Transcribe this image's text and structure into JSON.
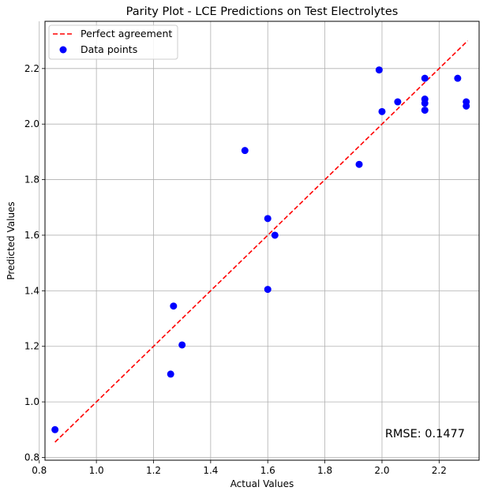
{
  "chart_data": {
    "type": "scatter",
    "title": "Parity Plot - LCE Predictions on Test Electrolytes",
    "xlabel": "Actual Values",
    "ylabel": "Predicted Values",
    "xlim": [
      0.82,
      2.34
    ],
    "ylim": [
      0.79,
      2.37
    ],
    "xticks": [
      0.8,
      1.0,
      1.2,
      1.4,
      1.6,
      1.8,
      2.0,
      2.2
    ],
    "yticks": [
      0.8,
      1.0,
      1.2,
      1.4,
      1.6,
      1.8,
      2.0,
      2.2
    ],
    "xtick_labels": [
      "0.8",
      "1.0",
      "1.2",
      "1.4",
      "1.6",
      "1.8",
      "2.0",
      "2.2"
    ],
    "ytick_labels": [
      "0.8",
      "1.0",
      "1.2",
      "1.4",
      "1.6",
      "1.8",
      "2.0",
      "2.2"
    ],
    "grid": true,
    "legend_position": "top-left",
    "series": [
      {
        "name": "Perfect agreement",
        "type": "line",
        "style": "dashed",
        "color": "#ff0000",
        "points": [
          [
            0.855,
            0.855
          ],
          [
            2.3,
            2.3
          ]
        ]
      },
      {
        "name": "Data points",
        "type": "scatter",
        "color": "#0000ff",
        "points": [
          [
            0.855,
            0.9
          ],
          [
            1.26,
            1.1
          ],
          [
            1.27,
            1.345
          ],
          [
            1.3,
            1.205
          ],
          [
            1.52,
            1.905
          ],
          [
            1.6,
            1.66
          ],
          [
            1.6,
            1.405
          ],
          [
            1.625,
            1.6
          ],
          [
            1.92,
            1.855
          ],
          [
            1.99,
            2.195
          ],
          [
            2.0,
            2.045
          ],
          [
            2.055,
            2.08
          ],
          [
            2.15,
            2.165
          ],
          [
            2.15,
            2.09
          ],
          [
            2.15,
            2.075
          ],
          [
            2.15,
            2.05
          ],
          [
            2.265,
            2.165
          ],
          [
            2.295,
            2.08
          ],
          [
            2.295,
            2.065
          ]
        ]
      }
    ],
    "annotations": [
      {
        "text": "RMSE: 0.1477",
        "position": "bottom-right"
      }
    ]
  }
}
